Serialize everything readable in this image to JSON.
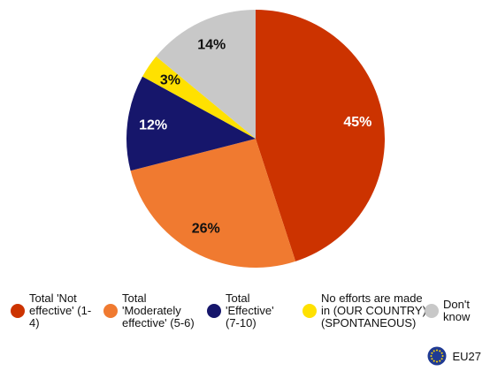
{
  "chart_data": {
    "type": "pie",
    "categories": [
      "Total 'Not effective' (1-4)",
      "Total 'Moderately effective' (5-6)",
      "Total 'Effective' (7-10)",
      "No efforts are made in (OUR COUNTRY) (SPONTANEOUS)",
      "Don't know"
    ],
    "values": [
      45,
      26,
      12,
      3,
      14
    ],
    "value_labels": [
      "45%",
      "26%",
      "12%",
      "3%",
      "14%"
    ],
    "colors": [
      "#cc3300",
      "#f07a30",
      "#16166b",
      "#ffe100",
      "#c8c8c8"
    ],
    "legend": "bottom",
    "annotation": "EU27"
  }
}
